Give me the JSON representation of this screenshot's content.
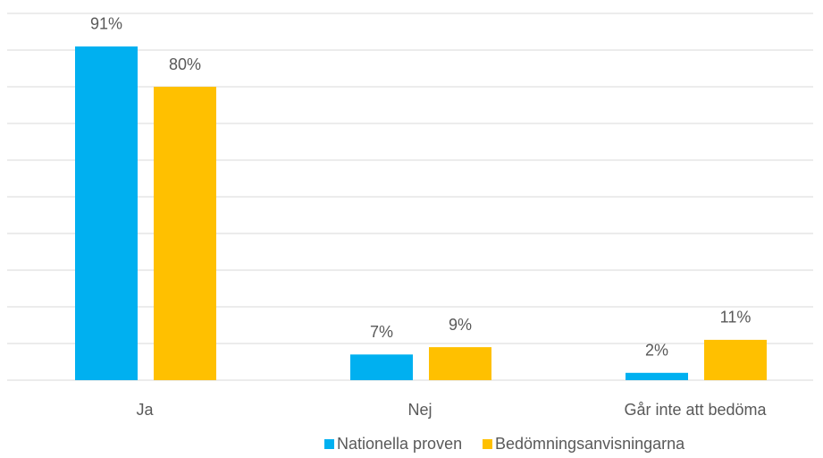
{
  "chart_data": {
    "type": "bar",
    "categories": [
      "Ja",
      "Nej",
      "Går inte att bedöma"
    ],
    "series": [
      {
        "name": "Nationella proven",
        "color": "#00B0F0",
        "values": [
          91,
          7,
          2
        ],
        "value_labels": [
          "91%",
          "7%",
          "2%"
        ]
      },
      {
        "name": "Bedömningsanvisningarna",
        "color": "#FFC000",
        "values": [
          80,
          9,
          11
        ],
        "value_labels": [
          "80%",
          "9%",
          "11%"
        ]
      }
    ],
    "ylim": [
      0,
      100
    ],
    "yticks": [
      0,
      10,
      20,
      30,
      40,
      50,
      60,
      70,
      80,
      90,
      100
    ],
    "grid": true,
    "legend": "bottom"
  }
}
